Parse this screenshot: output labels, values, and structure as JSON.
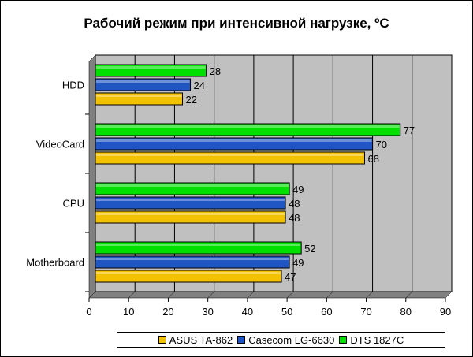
{
  "chart_data": {
    "type": "bar",
    "orientation": "horizontal",
    "title": "Рабочий режим при интенсивной нагрузке, ºС",
    "categories": [
      "HDD",
      "VideoCard",
      "CPU",
      "Motherboard"
    ],
    "series": [
      {
        "name": "ASUS TA-862",
        "color": "#f2c200",
        "values": [
          22,
          68,
          48,
          47
        ]
      },
      {
        "name": "Casecom LG-6630",
        "color": "#1f56c4",
        "values": [
          24,
          70,
          48,
          49
        ]
      },
      {
        "name": "DTS 1827C",
        "color": "#00e000",
        "values": [
          28,
          77,
          49,
          52
        ]
      }
    ],
    "xlim": [
      0,
      90
    ],
    "xticks": [
      "0",
      "10",
      "20",
      "30",
      "40",
      "50",
      "60",
      "70",
      "80",
      "90"
    ],
    "grid": true,
    "plot_background": "#c0c0c0",
    "legend_position": "bottom"
  }
}
